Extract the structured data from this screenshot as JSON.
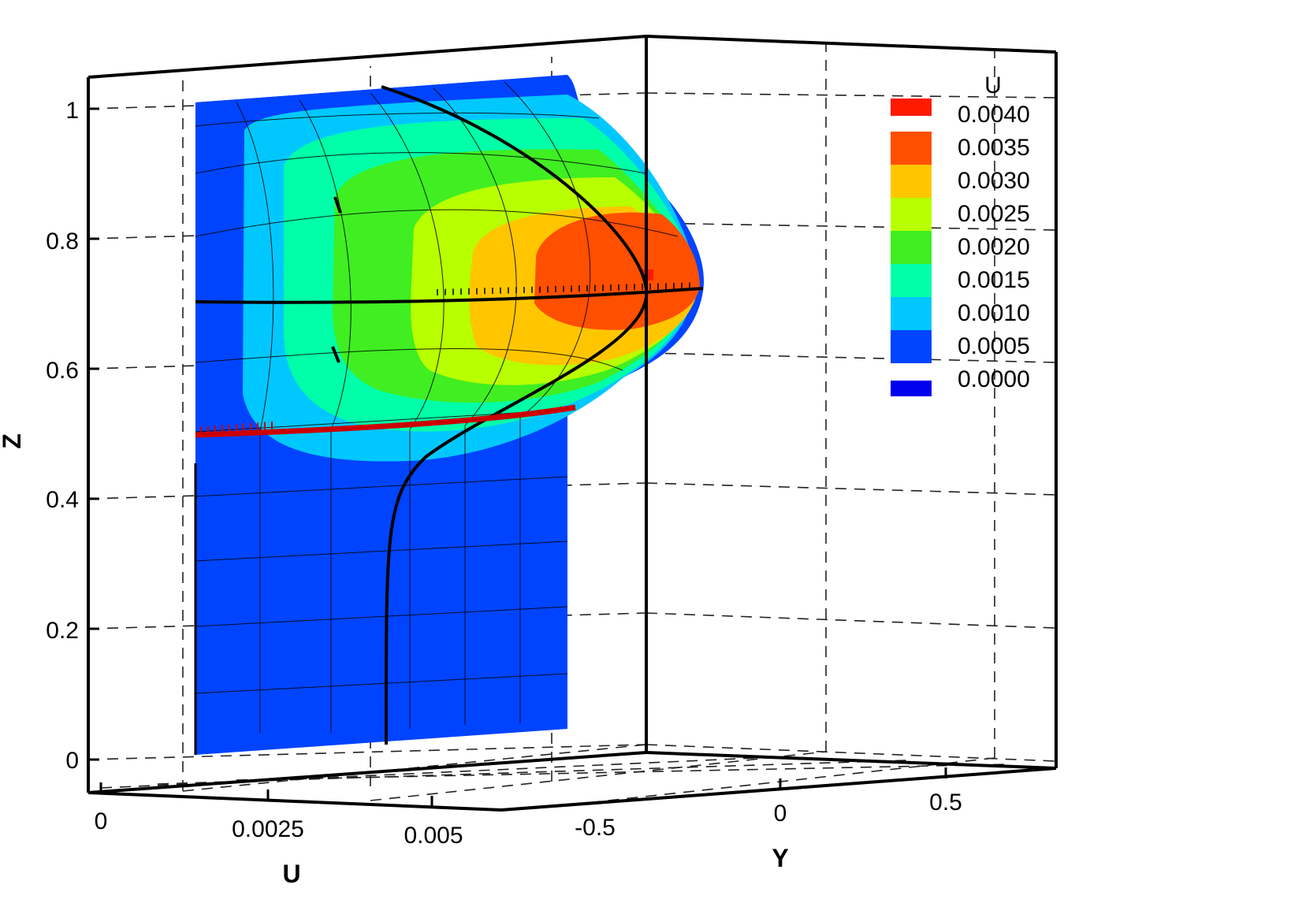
{
  "chart_data": {
    "type": "3d-contour-surface",
    "axes": {
      "x": {
        "label": "U",
        "ticks": [
          "0",
          "0.0025",
          "0.005"
        ]
      },
      "y": {
        "label": "Y",
        "ticks": [
          "-0.5",
          "0",
          "0.5"
        ]
      },
      "z": {
        "label": "Z",
        "ticks": [
          "0",
          "0.2",
          "0.4",
          "0.6",
          "0.8",
          "1"
        ]
      }
    },
    "grid": true,
    "legend": {
      "title": "U",
      "placement": "top-right",
      "levels": [
        {
          "label": "0.0040",
          "color": "#ff1a00"
        },
        {
          "label": "0.0035",
          "color": "#ff4f00"
        },
        {
          "label": "0.0030",
          "color": "#ffc600"
        },
        {
          "label": "0.0025",
          "color": "#b8ff00"
        },
        {
          "label": "0.0020",
          "color": "#40ee22"
        },
        {
          "label": "0.0015",
          "color": "#00ffa8"
        },
        {
          "label": "0.0010",
          "color": "#00c8ff"
        },
        {
          "label": "0.0005",
          "color": "#0044ff"
        },
        {
          "label": "0.0000",
          "color": "#0000ee"
        }
      ]
    },
    "profile": {
      "description_of_variable": "U",
      "max_U": 0.0042,
      "z_at_max": 0.72,
      "zero_region_z": [
        0,
        0.5
      ]
    }
  }
}
